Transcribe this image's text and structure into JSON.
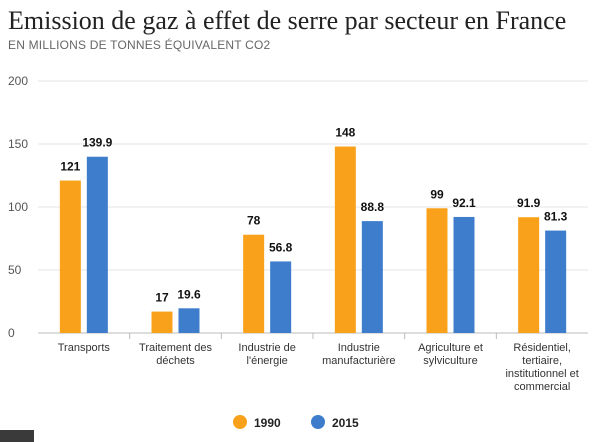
{
  "header": {
    "title": "Emission de gaz à effet de serre par secteur en France",
    "subtitle": "EN MILLIONS DE TONNES ÉQUIVALENT CO2"
  },
  "chart_data": {
    "type": "bar",
    "title": "Emission de gaz à effet de serre par secteur en France",
    "subtitle": "EN MILLIONS DE TONNES ÉQUIVALENT CO2",
    "xlabel": "",
    "ylabel": "",
    "ylim": [
      0,
      200
    ],
    "yticks": [
      0,
      50,
      100,
      150,
      200
    ],
    "grid": true,
    "legend_position": "bottom",
    "categories": [
      [
        "Transports"
      ],
      [
        "Traitement des",
        "déchets"
      ],
      [
        "Industrie de",
        "l'énergie"
      ],
      [
        "Industrie",
        "manufacturière"
      ],
      [
        "Agriculture et",
        "sylviculture"
      ],
      [
        "Résidentiel,",
        "tertiaire,",
        "institutionnel et",
        "commercial"
      ]
    ],
    "series": [
      {
        "name": "1990",
        "color": "#f9a11b",
        "values": [
          121,
          17,
          78,
          148,
          99,
          91.9
        ]
      },
      {
        "name": "2015",
        "color": "#3d7dcb",
        "values": [
          139.9,
          19.6,
          56.8,
          88.8,
          92.1,
          81.3
        ]
      }
    ]
  }
}
